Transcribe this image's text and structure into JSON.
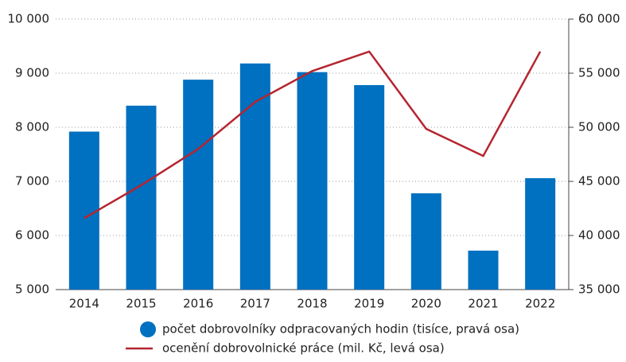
{
  "chart_data": {
    "type": "bar",
    "categories": [
      "2014",
      "2015",
      "2016",
      "2017",
      "2018",
      "2019",
      "2020",
      "2021",
      "2022"
    ],
    "series": [
      {
        "name": "počet dobrovolníky odpracovaných hodin (tisíce, pravá osa)",
        "type": "bar",
        "axis": "y2",
        "color": "#0070c0",
        "values": [
          49600,
          52000,
          54400,
          55900,
          55100,
          53900,
          43900,
          38600,
          45300
        ]
      },
      {
        "name": "ocenění dobrovolnické práce (mil. Kč, levá osa)",
        "type": "line",
        "axis": "y",
        "color": "#b5252f",
        "values": [
          6320,
          6930,
          7600,
          8470,
          9040,
          9400,
          7970,
          7470,
          9400
        ]
      }
    ],
    "ylim": [
      5000,
      10000
    ],
    "yticks": [
      {
        "value": 5000,
        "label": "5 000"
      },
      {
        "value": 6000,
        "label": "6 000"
      },
      {
        "value": 7000,
        "label": "7 000"
      },
      {
        "value": 8000,
        "label": "8 000"
      },
      {
        "value": 9000,
        "label": "9 000"
      },
      {
        "value": 10000,
        "label": "10 000"
      }
    ],
    "y2lim": [
      35000,
      60000
    ],
    "y2ticks": [
      {
        "value": 35000,
        "label": "35 000"
      },
      {
        "value": 40000,
        "label": "40 000"
      },
      {
        "value": 45000,
        "label": "45 000"
      },
      {
        "value": 50000,
        "label": "50 000"
      },
      {
        "value": 55000,
        "label": "55 000"
      },
      {
        "value": 60000,
        "label": "60 000"
      }
    ],
    "grid": true
  }
}
